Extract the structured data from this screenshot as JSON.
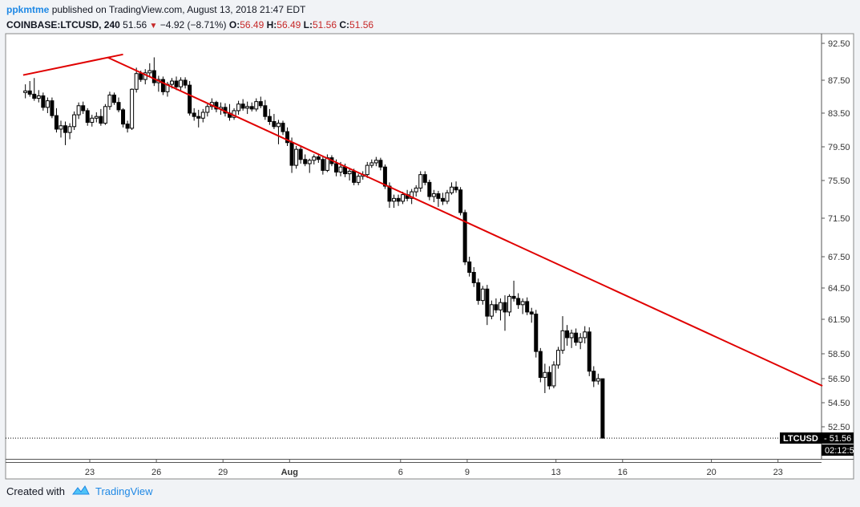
{
  "header": {
    "author": "ppkmtme",
    "published_text": "published on TradingView.com, August 13, 2018 21:47 EDT",
    "symbol": "COINBASE:LTCUSD,",
    "interval": "240",
    "last": "51.56",
    "arrow": "▼",
    "change": "−4.92 (−8.71%)",
    "o_label": "O:",
    "o_value": "56.49",
    "h_label": "H:",
    "h_value": "56.49",
    "l_label": "L:",
    "l_value": "51.56",
    "c_label": "C:",
    "c_value": "51.56"
  },
  "footer": {
    "created_with": "Created with",
    "brand": "TradingView",
    "logo_icon": "tradingview-cloud-icon"
  },
  "colors": {
    "trendline": "#e00000",
    "candle": "#000000",
    "background": "#ffffff",
    "page": "#f1f3f6",
    "label_bg": "#000000"
  },
  "chart_data": {
    "type": "candlestick",
    "symbol_label": "LTCUSD",
    "last_price_label": "51.56",
    "countdown_label": "02:12:5",
    "y_ticks": [
      "92.50",
      "87.50",
      "83.50",
      "79.50",
      "75.50",
      "71.50",
      "67.50",
      "64.50",
      "61.50",
      "58.50",
      "56.50",
      "54.50",
      "52.50"
    ],
    "y_tick_values": [
      92.5,
      87.5,
      83.5,
      79.5,
      75.5,
      71.5,
      67.5,
      64.5,
      61.5,
      58.5,
      56.5,
      54.5,
      52.5
    ],
    "x_tick_labels": [
      "23",
      "26",
      "29",
      "Aug",
      "6",
      "9",
      "13",
      "16",
      "20",
      "23"
    ],
    "x_tick_days": [
      23,
      26,
      29,
      32,
      37,
      40,
      44,
      47,
      51,
      54
    ],
    "ylim": [
      51.0,
      93.5
    ],
    "xlim": [
      20.0,
      56.0
    ],
    "trendlines": [
      {
        "x1": 20.0,
        "y1": 88.2,
        "x2": 24.5,
        "y2": 91.0
      },
      {
        "x1": 23.8,
        "y1": 90.6,
        "x2": 56.0,
        "y2": 55.9
      }
    ],
    "candles": [
      [
        20.1,
        86.0,
        87.0,
        85.3,
        86.2
      ],
      [
        20.3,
        86.2,
        87.4,
        85.5,
        85.8
      ],
      [
        20.5,
        85.8,
        87.8,
        85.0,
        85.3
      ],
      [
        20.7,
        85.3,
        86.3,
        84.8,
        85.6
      ],
      [
        20.9,
        85.6,
        86.0,
        83.8,
        84.2
      ],
      [
        21.1,
        84.2,
        85.4,
        83.5,
        85.0
      ],
      [
        21.3,
        85.0,
        85.4,
        82.9,
        83.2
      ],
      [
        21.5,
        83.2,
        84.1,
        81.2,
        81.6
      ],
      [
        21.7,
        81.6,
        82.6,
        80.6,
        82.0
      ],
      [
        21.9,
        82.0,
        82.5,
        79.7,
        81.2
      ],
      [
        22.1,
        81.2,
        82.3,
        80.4,
        81.9
      ],
      [
        22.3,
        81.9,
        83.7,
        81.5,
        83.3
      ],
      [
        22.5,
        83.3,
        84.8,
        82.8,
        84.4
      ],
      [
        22.7,
        84.4,
        84.9,
        83.4,
        83.8
      ],
      [
        22.9,
        83.8,
        84.1,
        82.0,
        82.4
      ],
      [
        23.1,
        82.4,
        83.3,
        81.9,
        82.9
      ],
      [
        23.3,
        82.9,
        83.6,
        82.4,
        83.1
      ],
      [
        23.5,
        83.1,
        84.0,
        82.0,
        82.3
      ],
      [
        23.7,
        82.3,
        84.6,
        82.1,
        84.3
      ],
      [
        23.9,
        84.3,
        86.1,
        83.9,
        85.7
      ],
      [
        24.1,
        85.7,
        86.0,
        84.5,
        84.8
      ],
      [
        24.3,
        84.8,
        85.4,
        83.6,
        83.9
      ],
      [
        24.5,
        83.9,
        84.1,
        81.8,
        82.2
      ],
      [
        24.7,
        82.2,
        82.6,
        81.2,
        81.7
      ],
      [
        24.9,
        81.7,
        86.5,
        81.5,
        86.4
      ],
      [
        25.1,
        86.4,
        89.2,
        86.0,
        88.4
      ],
      [
        25.3,
        88.4,
        88.8,
        87.3,
        87.6
      ],
      [
        25.5,
        87.6,
        89.0,
        87.0,
        88.5
      ],
      [
        25.7,
        88.5,
        89.8,
        88.0,
        88.8
      ],
      [
        25.9,
        88.8,
        90.6,
        86.8,
        87.2
      ],
      [
        26.1,
        87.2,
        88.1,
        86.1,
        87.6
      ],
      [
        26.3,
        87.6,
        88.0,
        85.7,
        86.1
      ],
      [
        26.5,
        86.1,
        87.3,
        85.5,
        87.0
      ],
      [
        26.7,
        87.0,
        87.8,
        86.5,
        87.4
      ],
      [
        26.9,
        87.4,
        88.0,
        86.3,
        86.7
      ],
      [
        27.1,
        86.7,
        87.9,
        86.2,
        87.5
      ],
      [
        27.3,
        87.5,
        87.9,
        86.5,
        86.9
      ],
      [
        27.5,
        86.9,
        87.4,
        83.2,
        83.5
      ],
      [
        27.7,
        83.5,
        84.1,
        82.6,
        83.1
      ],
      [
        27.9,
        83.1,
        83.9,
        81.8,
        82.9
      ],
      [
        28.1,
        82.9,
        84.0,
        82.4,
        83.6
      ],
      [
        28.3,
        83.6,
        84.6,
        83.1,
        84.3
      ],
      [
        28.5,
        84.3,
        85.3,
        83.9,
        84.8
      ],
      [
        28.7,
        84.8,
        85.0,
        83.6,
        84.0
      ],
      [
        28.9,
        84.0,
        84.8,
        83.3,
        84.2
      ],
      [
        29.1,
        84.2,
        84.7,
        83.1,
        83.5
      ],
      [
        29.3,
        83.5,
        84.6,
        82.6,
        83.0
      ],
      [
        29.5,
        83.0,
        84.1,
        82.7,
        83.8
      ],
      [
        29.7,
        83.8,
        85.0,
        83.3,
        84.6
      ],
      [
        29.9,
        84.6,
        85.2,
        83.8,
        84.1
      ],
      [
        30.1,
        84.1,
        84.9,
        83.4,
        84.3
      ],
      [
        30.3,
        84.3,
        84.8,
        83.7,
        84.0
      ],
      [
        30.5,
        84.0,
        85.3,
        83.7,
        84.9
      ],
      [
        30.7,
        84.9,
        85.5,
        84.1,
        84.4
      ],
      [
        30.9,
        84.4,
        85.1,
        82.7,
        83.1
      ],
      [
        31.1,
        83.1,
        84.0,
        82.1,
        82.5
      ],
      [
        31.3,
        82.5,
        83.4,
        81.6,
        81.9
      ],
      [
        31.5,
        81.9,
        82.7,
        79.8,
        82.3
      ],
      [
        31.7,
        82.3,
        82.6,
        80.9,
        81.3
      ],
      [
        31.9,
        81.3,
        81.8,
        79.6,
        80.0
      ],
      [
        32.1,
        80.0,
        80.6,
        76.4,
        77.3
      ],
      [
        32.3,
        77.3,
        79.6,
        76.9,
        79.2
      ],
      [
        32.5,
        79.2,
        79.6,
        77.5,
        78.0
      ],
      [
        32.7,
        78.0,
        78.6,
        77.2,
        77.5
      ],
      [
        32.9,
        77.5,
        78.1,
        76.4,
        77.9
      ],
      [
        33.1,
        77.9,
        78.6,
        77.4,
        78.3
      ],
      [
        33.3,
        78.3,
        78.7,
        77.6,
        78.0
      ],
      [
        33.5,
        78.0,
        78.3,
        76.2,
        76.7
      ],
      [
        33.7,
        76.7,
        78.6,
        76.5,
        78.2
      ],
      [
        33.9,
        78.2,
        78.5,
        77.2,
        77.5
      ],
      [
        34.1,
        77.5,
        78.0,
        76.0,
        76.5
      ],
      [
        34.3,
        76.5,
        77.7,
        76.0,
        77.1
      ],
      [
        34.5,
        77.1,
        77.5,
        75.9,
        76.3
      ],
      [
        34.7,
        76.3,
        77.0,
        75.5,
        76.6
      ],
      [
        34.9,
        76.6,
        76.9,
        75.0,
        75.3
      ],
      [
        35.1,
        75.3,
        76.3,
        75.0,
        76.0
      ],
      [
        35.3,
        76.0,
        76.6,
        75.6,
        76.2
      ],
      [
        35.5,
        76.2,
        77.7,
        75.8,
        77.3
      ],
      [
        35.7,
        77.3,
        78.0,
        77.0,
        77.6
      ],
      [
        35.9,
        77.6,
        78.3,
        77.2,
        77.9
      ],
      [
        36.1,
        77.9,
        78.2,
        76.7,
        77.1
      ],
      [
        36.3,
        77.1,
        77.4,
        74.6,
        74.9
      ],
      [
        36.5,
        74.9,
        75.3,
        72.6,
        73.3
      ],
      [
        36.7,
        73.3,
        74.0,
        72.6,
        73.6
      ],
      [
        36.9,
        73.6,
        74.0,
        72.8,
        73.3
      ],
      [
        37.1,
        73.3,
        74.3,
        73.0,
        74.0
      ],
      [
        37.3,
        74.0,
        74.5,
        73.3,
        73.6
      ],
      [
        37.5,
        73.6,
        74.6,
        73.0,
        74.3
      ],
      [
        37.7,
        74.3,
        75.0,
        73.8,
        74.7
      ],
      [
        37.9,
        74.7,
        76.6,
        74.3,
        76.2
      ],
      [
        38.1,
        76.2,
        76.6,
        75.0,
        75.3
      ],
      [
        38.3,
        75.3,
        75.6,
        73.4,
        73.8
      ],
      [
        38.5,
        73.8,
        74.5,
        73.2,
        74.1
      ],
      [
        38.7,
        74.1,
        74.4,
        72.7,
        73.6
      ],
      [
        38.9,
        73.6,
        74.2,
        72.9,
        73.3
      ],
      [
        39.1,
        73.3,
        74.5,
        73.0,
        74.2
      ],
      [
        39.3,
        74.2,
        75.3,
        74.0,
        74.8
      ],
      [
        39.5,
        74.8,
        75.4,
        74.2,
        74.5
      ],
      [
        39.7,
        74.5,
        74.8,
        71.8,
        72.1
      ],
      [
        39.9,
        72.1,
        72.4,
        66.7,
        67.0
      ],
      [
        40.1,
        67.0,
        67.5,
        65.6,
        66.0
      ],
      [
        40.3,
        66.0,
        66.5,
        64.6,
        65.0
      ],
      [
        40.5,
        65.0,
        65.4,
        62.9,
        63.3
      ],
      [
        40.7,
        63.3,
        64.7,
        62.9,
        64.4
      ],
      [
        40.9,
        64.4,
        64.8,
        61.0,
        61.8
      ],
      [
        41.1,
        61.8,
        63.3,
        61.5,
        62.9
      ],
      [
        41.3,
        62.9,
        63.5,
        62.1,
        62.4
      ],
      [
        41.5,
        62.4,
        63.5,
        61.4,
        63.1
      ],
      [
        41.7,
        63.1,
        63.8,
        60.5,
        62.2
      ],
      [
        41.9,
        62.2,
        63.9,
        61.8,
        63.7
      ],
      [
        42.1,
        63.7,
        65.2,
        63.2,
        63.5
      ],
      [
        42.3,
        63.5,
        64.0,
        62.5,
        62.9
      ],
      [
        42.5,
        62.9,
        63.5,
        62.0,
        63.2
      ],
      [
        42.7,
        63.2,
        63.6,
        61.9,
        62.2
      ],
      [
        42.9,
        62.2,
        62.6,
        61.2,
        62.0
      ],
      [
        43.1,
        62.0,
        62.4,
        58.2,
        58.7
      ],
      [
        43.3,
        58.7,
        59.0,
        56.2,
        56.6
      ],
      [
        43.5,
        56.6,
        57.7,
        55.3,
        57.0
      ],
      [
        43.7,
        57.0,
        57.5,
        55.6,
        55.9
      ],
      [
        43.9,
        55.9,
        57.9,
        55.7,
        57.6
      ],
      [
        44.1,
        57.6,
        59.1,
        57.3,
        58.8
      ],
      [
        44.3,
        58.8,
        61.8,
        58.5,
        60.5
      ],
      [
        44.5,
        60.5,
        61.0,
        59.2,
        59.9
      ],
      [
        44.7,
        59.9,
        60.6,
        59.0,
        60.3
      ],
      [
        44.9,
        60.3,
        60.7,
        59.2,
        59.5
      ],
      [
        45.1,
        59.5,
        60.3,
        58.9,
        59.9
      ],
      [
        45.3,
        59.9,
        60.9,
        59.4,
        60.4
      ],
      [
        45.5,
        60.4,
        60.8,
        56.7,
        57.1
      ],
      [
        45.7,
        57.1,
        57.5,
        55.8,
        56.3
      ],
      [
        45.9,
        56.3,
        56.9,
        56.0,
        56.5
      ],
      [
        46.1,
        56.49,
        56.49,
        51.56,
        51.56
      ]
    ]
  }
}
